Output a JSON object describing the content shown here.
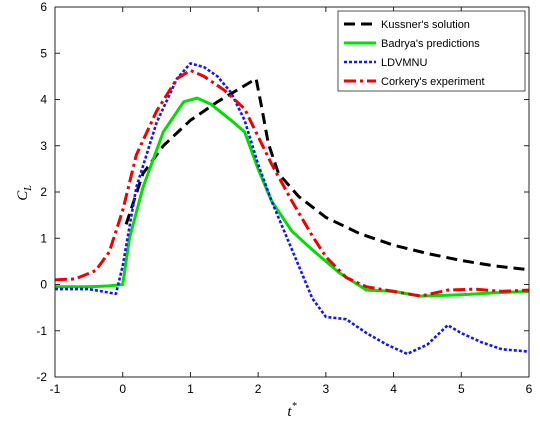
{
  "chart_data": {
    "type": "line",
    "title": "",
    "xlabel": "t",
    "xlabel_sup": "*",
    "ylabel": "C",
    "ylabel_sub": "L",
    "xlim": [
      -1,
      6
    ],
    "ylim": [
      -2,
      6
    ],
    "xticks": [
      -1,
      0,
      1,
      2,
      3,
      4,
      5,
      6
    ],
    "yticks": [
      -2,
      -1,
      0,
      1,
      2,
      3,
      4,
      5,
      6
    ],
    "grid": false,
    "legend_position": "top-right",
    "series": [
      {
        "name": "Kussner's solution",
        "color": "#000000",
        "dash": "dashed",
        "x": [
          0.05,
          0.3,
          0.6,
          1.0,
          1.4,
          1.8,
          1.97,
          2.05,
          2.15,
          2.3,
          2.6,
          3.0,
          3.5,
          4.0,
          4.5,
          5.0,
          5.5,
          6.0
        ],
        "y": [
          1.3,
          2.4,
          3.0,
          3.55,
          3.95,
          4.3,
          4.45,
          3.85,
          3.05,
          2.4,
          1.9,
          1.45,
          1.1,
          0.85,
          0.67,
          0.52,
          0.4,
          0.32
        ]
      },
      {
        "name": "Badrya's predictions",
        "color": "#00dd00",
        "dash": "solid",
        "x": [
          -1.0,
          -0.5,
          -0.2,
          0.0,
          0.1,
          0.3,
          0.6,
          0.9,
          1.1,
          1.3,
          1.6,
          1.8,
          2.0,
          2.2,
          2.5,
          2.8,
          3.2,
          3.6,
          4.0,
          4.4,
          5.0,
          5.5,
          6.0
        ],
        "y": [
          -0.05,
          -0.05,
          -0.03,
          0.0,
          1.0,
          2.1,
          3.3,
          3.95,
          4.03,
          3.9,
          3.55,
          3.3,
          2.5,
          1.8,
          1.15,
          0.75,
          0.25,
          -0.12,
          -0.15,
          -0.25,
          -0.22,
          -0.18,
          -0.15
        ]
      },
      {
        "name": "LDVMNU",
        "color": "#1414ff",
        "dash": "dotted",
        "x": [
          -1.0,
          -0.5,
          -0.1,
          0.0,
          0.2,
          0.5,
          0.8,
          1.0,
          1.2,
          1.4,
          1.6,
          1.8,
          2.0,
          2.2,
          2.4,
          2.6,
          2.8,
          3.0,
          3.3,
          3.6,
          3.9,
          4.2,
          4.5,
          4.8,
          5.0,
          5.3,
          5.6,
          6.0
        ],
        "y": [
          -0.1,
          -0.1,
          -0.2,
          0.4,
          2.1,
          3.5,
          4.45,
          4.78,
          4.7,
          4.5,
          4.15,
          3.55,
          2.6,
          1.8,
          1.1,
          0.4,
          -0.3,
          -0.7,
          -0.75,
          -1.05,
          -1.3,
          -1.5,
          -1.3,
          -0.88,
          -1.05,
          -1.25,
          -1.4,
          -1.45
        ]
      },
      {
        "name": "Corkery's experiment",
        "color": "#ee0000",
        "dash": "dashdot",
        "x": [
          -1.0,
          -0.7,
          -0.4,
          -0.2,
          0.0,
          0.2,
          0.5,
          0.8,
          1.0,
          1.2,
          1.5,
          1.8,
          2.0,
          2.2,
          2.5,
          2.8,
          3.0,
          3.3,
          3.6,
          4.0,
          4.4,
          4.8,
          5.2,
          5.6,
          6.0
        ],
        "y": [
          0.1,
          0.12,
          0.3,
          0.7,
          1.6,
          2.8,
          3.75,
          4.45,
          4.63,
          4.5,
          4.2,
          3.8,
          3.2,
          2.6,
          1.8,
          1.05,
          0.6,
          0.15,
          -0.05,
          -0.15,
          -0.25,
          -0.12,
          -0.1,
          -0.15,
          -0.12
        ]
      }
    ]
  }
}
